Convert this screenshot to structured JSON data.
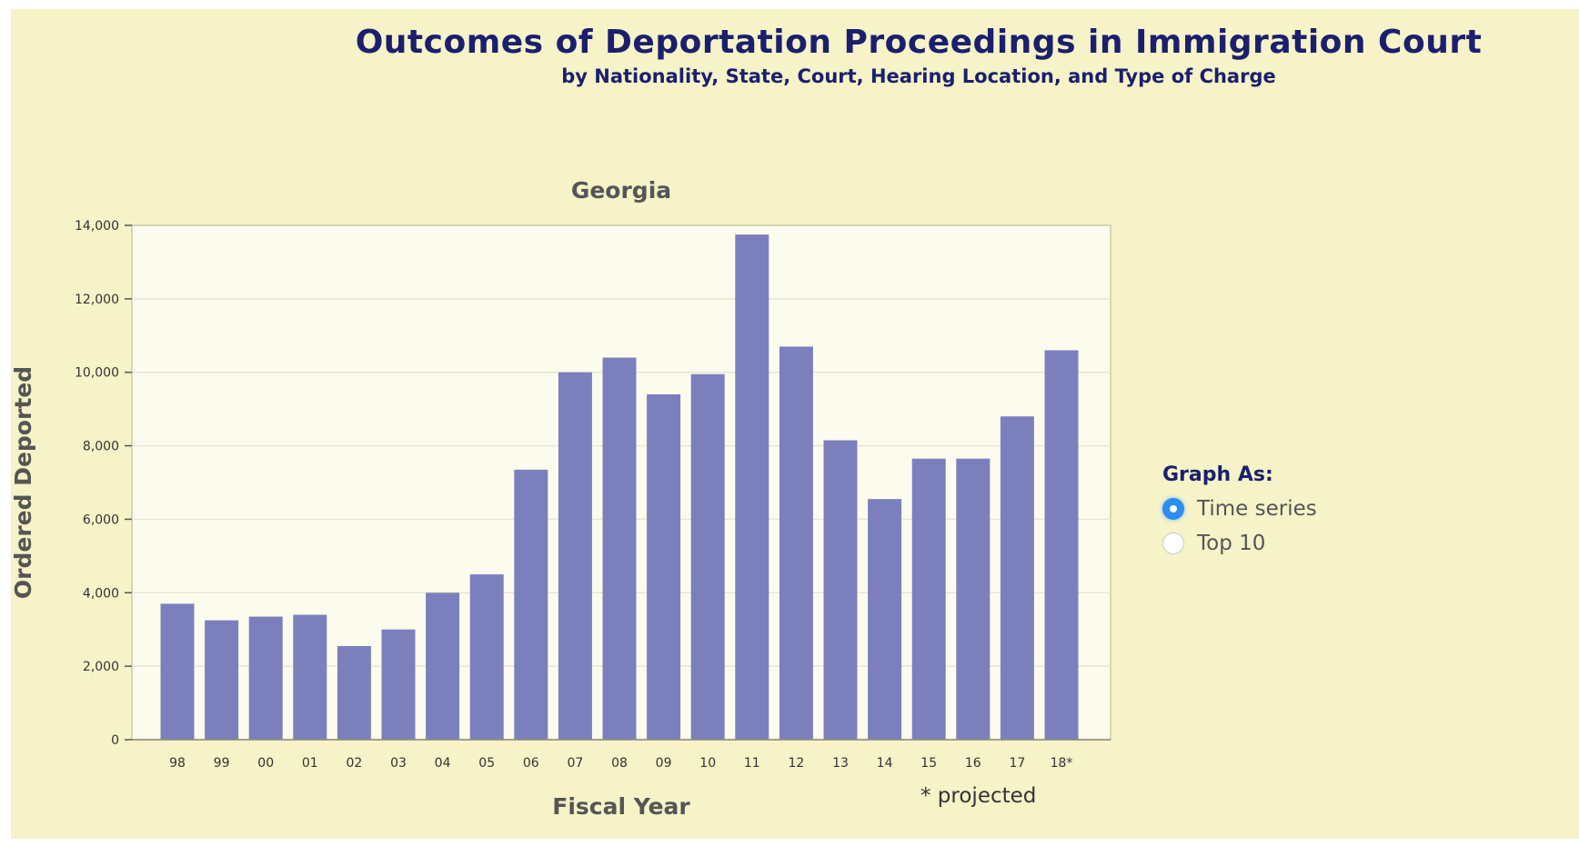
{
  "header": {
    "title": "Outcomes of Deportation Proceedings in Immigration Court",
    "subtitle": "by Nationality, State, Court, Hearing Location, and Type of Charge"
  },
  "chart_data": {
    "type": "bar",
    "title": "Georgia",
    "xlabel": "Fiscal Year",
    "ylabel": "Ordered Deported",
    "categories": [
      "98",
      "99",
      "00",
      "01",
      "02",
      "03",
      "04",
      "05",
      "06",
      "07",
      "08",
      "09",
      "10",
      "11",
      "12",
      "13",
      "14",
      "15",
      "16",
      "17",
      "18*"
    ],
    "values": [
      3700,
      3250,
      3350,
      3400,
      2550,
      3000,
      4000,
      4500,
      7350,
      10000,
      10400,
      9400,
      9950,
      13750,
      10700,
      8150,
      6550,
      7650,
      7650,
      8800,
      10600
    ],
    "ylim": [
      0,
      14000
    ],
    "yticks": [
      0,
      2000,
      4000,
      6000,
      8000,
      10000,
      12000,
      14000
    ],
    "ytick_labels": [
      "0",
      "2,000",
      "4,000",
      "6,000",
      "8,000",
      "10,000",
      "12,000",
      "14,000"
    ],
    "annotation": "* projected",
    "grid": true,
    "bar_color": "#7b80bd"
  },
  "controls": {
    "graph_as_label": "Graph As:",
    "options": [
      {
        "label": "Time series",
        "selected": true
      },
      {
        "label": "Top 10",
        "selected": false
      }
    ]
  },
  "colors": {
    "background": "#f5f3c7",
    "plot_background": "#fcfcee",
    "title": "#1b1f6e",
    "radio_selected": "#2b8ef0"
  }
}
